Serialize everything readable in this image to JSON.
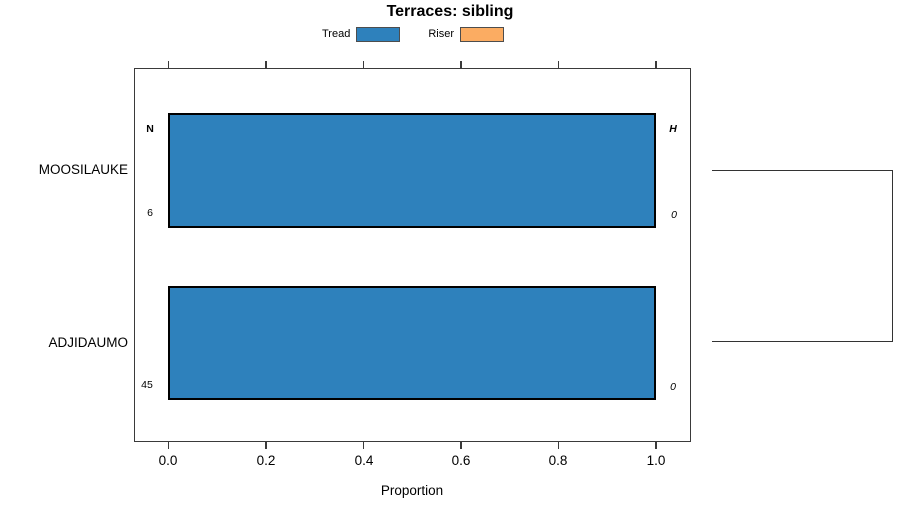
{
  "chart_data": {
    "type": "bar",
    "orientation": "horizontal",
    "title": "Terraces: sibling",
    "xlabel": "Proportion",
    "ylabel": "",
    "xlim": [
      0,
      1
    ],
    "x_tick_values": [
      0.0,
      0.2,
      0.4,
      0.6,
      0.8,
      1.0
    ],
    "x_tick_labels": [
      "0.0",
      "0.2",
      "0.4",
      "0.6",
      "0.8",
      "1.0"
    ],
    "grid": false,
    "legend_position": "top",
    "categories": [
      "MOOSILAUKE",
      "ADJIDAUMO"
    ],
    "series": [
      {
        "name": "Tread",
        "color": "#2E81BC",
        "values": [
          1.0,
          1.0
        ]
      },
      {
        "name": "Riser",
        "color": "#FBAC62",
        "values": [
          0.0,
          0.0
        ]
      }
    ],
    "bar_labels": [
      {
        "category": "MOOSILAUKE",
        "left_top": "N",
        "left_bottom": "6",
        "right_top": "H",
        "right_bottom": "0"
      },
      {
        "category": "ADJIDAUMO",
        "left_top": "",
        "left_bottom": "45",
        "right_top": "",
        "right_bottom": "0"
      }
    ],
    "cluster_bracket": {
      "side": "right",
      "connects": [
        "MOOSILAUKE",
        "ADJIDAUMO"
      ]
    }
  }
}
